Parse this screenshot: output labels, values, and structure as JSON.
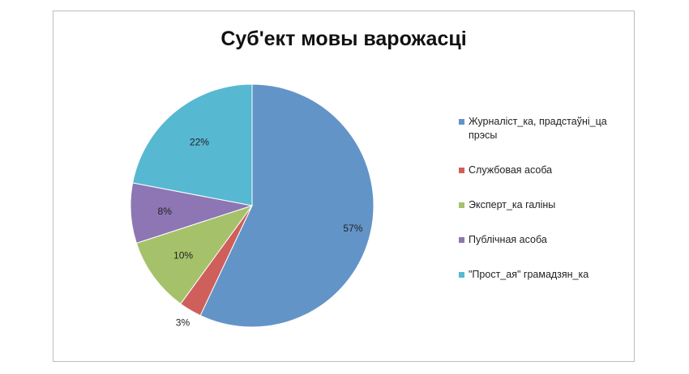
{
  "chart_data": {
    "type": "pie",
    "title": "Суб'ект мовы варожасці",
    "legend_position": "right",
    "slices": [
      {
        "name": "Журналіст_ка, прадстаўні_ца прэсы",
        "value": 57,
        "label": "57%",
        "color": "#6394c8"
      },
      {
        "name": "Службовая асоба",
        "value": 3,
        "label": "3%",
        "color": "#cf5f5b"
      },
      {
        "name": "Эксперт_ка галіны",
        "value": 10,
        "label": "10%",
        "color": "#a5c26a"
      },
      {
        "name": "Публічная асоба",
        "value": 8,
        "label": "8%",
        "color": "#8d76b3"
      },
      {
        "name": "\"Прост_ая\" грамадзян_ка",
        "value": 22,
        "label": "22%",
        "color": "#57b8d2"
      }
    ]
  }
}
